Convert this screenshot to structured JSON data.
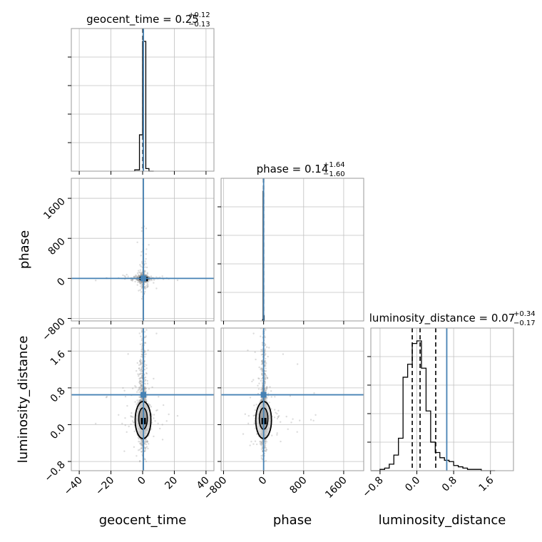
{
  "chart_data": {
    "type": "corner",
    "parameters": [
      "geocent_time",
      "phase",
      "luminosity_distance"
    ],
    "titles": [
      {
        "name": "geocent_time",
        "value": "0.25",
        "plus": "+0.12",
        "minus": "−0.13"
      },
      {
        "name": "phase",
        "value": "0.14",
        "plus": "+1.64",
        "minus": "−1.60"
      },
      {
        "name": "luminosity_distance",
        "value": "0.07",
        "plus": "+0.34",
        "minus": "−0.17"
      }
    ],
    "axis_labels": {
      "x": [
        "geocent_time",
        "phase",
        "luminosity_distance"
      ],
      "y": [
        "phase",
        "luminosity_distance"
      ]
    },
    "ranges": {
      "geocent_time": [
        -45,
        45
      ],
      "phase": [
        -850,
        2000
      ],
      "luminosity_distance": [
        -1.0,
        2.1
      ]
    },
    "ticks": {
      "geocent_time": [
        "−40",
        "−20",
        "0",
        "20",
        "40"
      ],
      "geocent_time_values": [
        -40,
        -20,
        0,
        20,
        40
      ],
      "phase": [
        "−800",
        "0",
        "800",
        "1600"
      ],
      "phase_values": [
        -800,
        0,
        800,
        1600
      ],
      "luminosity_distance": [
        "−0.8",
        "0.0",
        "0.8",
        "1.6"
      ],
      "luminosity_distance_values": [
        -0.8,
        0.0,
        0.8,
        1.6
      ]
    },
    "truths": {
      "geocent_time": 0.5,
      "phase": 0,
      "luminosity_distance": 0.65
    },
    "quantiles": {
      "geocent_time": [
        0.12,
        0.25,
        0.37
      ],
      "phase": [
        -1.46,
        0.14,
        1.78
      ],
      "luminosity_distance": [
        -0.1,
        0.07,
        0.41
      ]
    },
    "histograms": {
      "geocent_time": {
        "edges": [
          -5,
          -2,
          0,
          2,
          4,
          7
        ],
        "counts": [
          1,
          28,
          100,
          2,
          0
        ]
      },
      "phase": {
        "edges": [
          -20,
          -10,
          0,
          10,
          20
        ],
        "counts": [
          1,
          100,
          4,
          0
        ]
      },
      "luminosity_distance": {
        "edges": [
          -1.0,
          -0.9,
          -0.8,
          -0.7,
          -0.6,
          -0.5,
          -0.4,
          -0.3,
          -0.2,
          -0.1,
          0.0,
          0.1,
          0.2,
          0.3,
          0.4,
          0.5,
          0.6,
          0.7,
          0.8,
          0.9,
          1.0,
          1.1,
          1.2,
          1.3,
          1.4,
          1.5,
          1.6,
          1.7
        ],
        "counts": [
          0,
          0,
          1,
          2,
          5,
          12,
          25,
          72,
          82,
          98,
          100,
          79,
          46,
          22,
          14,
          10,
          8,
          7,
          4,
          3,
          2,
          1,
          1,
          1,
          0,
          0,
          0
        ]
      }
    },
    "grid": true,
    "colors": {
      "truth": "#4682b4",
      "hist": "#000000",
      "points": "#9a9a9a",
      "grid": "#c0c0c0",
      "frame": "#9a9a9a"
    }
  }
}
